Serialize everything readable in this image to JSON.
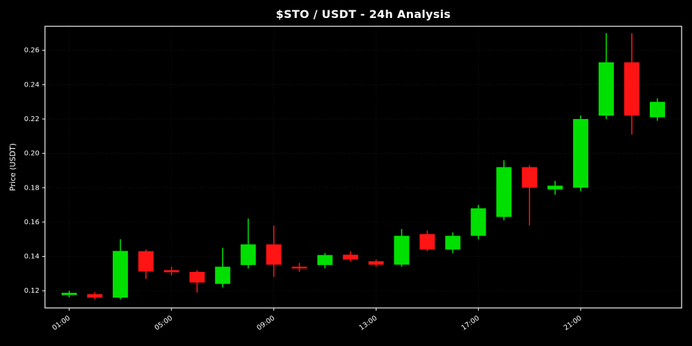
{
  "page": {
    "background": "#000000"
  },
  "chart_data": {
    "type": "candlestick",
    "title": "$STO / USDT - 24h Analysis",
    "ylabel": "Price (USDT)",
    "ylim": [
      0.11,
      0.274
    ],
    "yticks": [
      0.12,
      0.14,
      0.16,
      0.18,
      0.2,
      0.22,
      0.24,
      0.26
    ],
    "xtick_indices": [
      0,
      4,
      8,
      12,
      16,
      20
    ],
    "xtick_labels": [
      "01:00",
      "05:00",
      "09:00",
      "13:00",
      "17:00",
      "21:00"
    ],
    "up_color": "#00e000",
    "down_color": "#ff1414",
    "frame_color": "#ffffff",
    "grid_color": "rgba(255,255,255,0.14)",
    "text_color": "#ffffff",
    "grid": true,
    "legend_position": "none",
    "candles": [
      {
        "time": "01:00",
        "open": 0.1175,
        "high": 0.12,
        "low": 0.1162,
        "close": 0.1188
      },
      {
        "time": "02:00",
        "open": 0.118,
        "high": 0.1192,
        "low": 0.115,
        "close": 0.116
      },
      {
        "time": "03:00",
        "open": 0.116,
        "high": 0.15,
        "low": 0.115,
        "close": 0.1432
      },
      {
        "time": "04:00",
        "open": 0.143,
        "high": 0.144,
        "low": 0.127,
        "close": 0.1312
      },
      {
        "time": "05:00",
        "open": 0.132,
        "high": 0.134,
        "low": 0.129,
        "close": 0.1308
      },
      {
        "time": "06:00",
        "open": 0.131,
        "high": 0.132,
        "low": 0.119,
        "close": 0.1248
      },
      {
        "time": "07:00",
        "open": 0.124,
        "high": 0.145,
        "low": 0.122,
        "close": 0.134
      },
      {
        "time": "08:00",
        "open": 0.135,
        "high": 0.162,
        "low": 0.133,
        "close": 0.147
      },
      {
        "time": "09:00",
        "open": 0.147,
        "high": 0.158,
        "low": 0.128,
        "close": 0.1352
      },
      {
        "time": "10:00",
        "open": 0.134,
        "high": 0.1362,
        "low": 0.131,
        "close": 0.133
      },
      {
        "time": "11:00",
        "open": 0.135,
        "high": 0.142,
        "low": 0.133,
        "close": 0.1408
      },
      {
        "time": "12:00",
        "open": 0.141,
        "high": 0.143,
        "low": 0.137,
        "close": 0.1382
      },
      {
        "time": "13:00",
        "open": 0.1372,
        "high": 0.1382,
        "low": 0.134,
        "close": 0.1352
      },
      {
        "time": "14:00",
        "open": 0.1352,
        "high": 0.156,
        "low": 0.134,
        "close": 0.152
      },
      {
        "time": "15:00",
        "open": 0.153,
        "high": 0.155,
        "low": 0.143,
        "close": 0.144
      },
      {
        "time": "16:00",
        "open": 0.144,
        "high": 0.154,
        "low": 0.142,
        "close": 0.152
      },
      {
        "time": "17:00",
        "open": 0.152,
        "high": 0.17,
        "low": 0.15,
        "close": 0.168
      },
      {
        "time": "18:00",
        "open": 0.163,
        "high": 0.196,
        "low": 0.161,
        "close": 0.192
      },
      {
        "time": "19:00",
        "open": 0.192,
        "high": 0.193,
        "low": 0.158,
        "close": 0.18
      },
      {
        "time": "20:00",
        "open": 0.179,
        "high": 0.184,
        "low": 0.176,
        "close": 0.1812
      },
      {
        "time": "21:00",
        "open": 0.18,
        "high": 0.222,
        "low": 0.178,
        "close": 0.22
      },
      {
        "time": "22:00",
        "open": 0.222,
        "high": 0.27,
        "low": 0.22,
        "close": 0.253
      },
      {
        "time": "23:00",
        "open": 0.253,
        "high": 0.27,
        "low": 0.211,
        "close": 0.222
      },
      {
        "time": "00:00",
        "open": 0.221,
        "high": 0.232,
        "low": 0.219,
        "close": 0.23
      }
    ]
  }
}
